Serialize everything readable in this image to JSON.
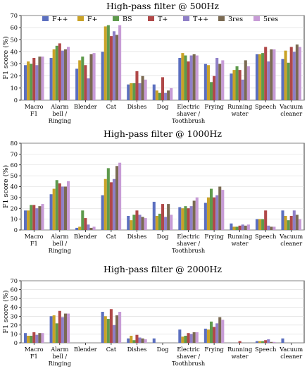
{
  "legend": [
    {
      "name": "F++",
      "color": "#5b6fbf"
    },
    {
      "name": "F+",
      "color": "#c9a227"
    },
    {
      "name": "BS",
      "color": "#5e9a4c"
    },
    {
      "name": "T+",
      "color": "#b04848"
    },
    {
      "name": "T++",
      "color": "#8f7fc7"
    },
    {
      "name": "3res",
      "color": "#7a6a52"
    },
    {
      "name": "5res",
      "color": "#c79bd6"
    }
  ],
  "chart_data": [
    {
      "type": "bar",
      "title": "High-pass filter @ 500Hz",
      "ylabel": "F1 score (%)",
      "ylim": [
        0,
        70
      ],
      "yticks": [
        0,
        10,
        20,
        30,
        40,
        50,
        60,
        70
      ],
      "grid": true,
      "legend_placement": "top",
      "categories": [
        "Macro\nF1",
        "Alarm\nbell /\nRinging",
        "Blender",
        "Cat",
        "Dishes",
        "Dog",
        "Electric\nshaver /\nToothbrush",
        "Frying",
        "Running\nwater",
        "Speech",
        "Vacuum\ncleaner"
      ],
      "series": [
        {
          "name": "F++",
          "values": [
            29,
            35,
            26,
            40,
            13,
            13,
            35,
            30,
            22,
            38,
            34
          ]
        },
        {
          "name": "F+",
          "values": [
            32,
            42,
            33,
            61,
            14,
            8,
            39,
            29,
            25,
            38,
            41
          ]
        },
        {
          "name": "BS",
          "values": [
            30,
            45,
            36,
            62,
            14,
            6,
            37,
            15,
            28,
            39,
            31
          ]
        },
        {
          "name": "T+",
          "values": [
            35,
            47,
            29,
            53,
            24,
            19,
            32,
            20,
            25,
            44,
            44
          ]
        },
        {
          "name": "T++",
          "values": [
            29,
            41,
            18,
            57,
            14,
            6,
            37,
            35,
            17,
            32,
            40
          ]
        },
        {
          "name": "3res",
          "values": [
            36,
            42,
            38,
            54,
            20,
            8,
            38,
            30,
            33,
            42,
            46
          ]
        },
        {
          "name": "5res",
          "values": [
            36,
            44,
            39,
            62,
            17,
            10,
            37,
            33,
            28,
            42,
            44
          ]
        }
      ]
    },
    {
      "type": "bar",
      "title": "High-pass filter @ 1000Hz",
      "ylabel": "F1 score (%)",
      "ylim": [
        0,
        80
      ],
      "yticks": [
        0,
        10,
        20,
        30,
        40,
        50,
        60,
        70,
        80
      ],
      "grid": true,
      "categories": [
        "Macro\nF1",
        "Alarm\nbell /\nRinging",
        "Blender",
        "Cat",
        "Dishes",
        "Dog",
        "Electric\nshaver /\nToothbrush",
        "Frying",
        "Running\nwater",
        "Speech",
        "Vacuum\ncleaner"
      ],
      "series": [
        {
          "name": "F++",
          "values": [
            18,
            33,
            2,
            32,
            13,
            26,
            21,
            25,
            6,
            10,
            18
          ]
        },
        {
          "name": "F+",
          "values": [
            18,
            38,
            3,
            47,
            9,
            13,
            20,
            30,
            3,
            10,
            13
          ]
        },
        {
          "name": "BS",
          "values": [
            23,
            46,
            18,
            57,
            14,
            15,
            22,
            38,
            3,
            10,
            9
          ]
        },
        {
          "name": "T+",
          "values": [
            23,
            43,
            11,
            44,
            18,
            24,
            20,
            30,
            4,
            18,
            13
          ]
        },
        {
          "name": "T++",
          "values": [
            20,
            40,
            5,
            47,
            14,
            12,
            22,
            32,
            5,
            4,
            18
          ]
        },
        {
          "name": "3res",
          "values": [
            22,
            40,
            2,
            59,
            12,
            24,
            27,
            40,
            4,
            3,
            14
          ]
        },
        {
          "name": "5res",
          "values": [
            24,
            45,
            3,
            62,
            11,
            14,
            30,
            37,
            5,
            3,
            10
          ]
        }
      ]
    },
    {
      "type": "bar",
      "title": "High-pass filter @ 2000Hz",
      "ylabel": "F1 score (%)",
      "ylim": [
        0,
        70
      ],
      "yticks": [
        0,
        10,
        20,
        30,
        40,
        50,
        60,
        70
      ],
      "grid": true,
      "categories": [
        "Macro\nF1",
        "Alarm\nbell /\nRinging",
        "Blender",
        "Cat",
        "Dishes",
        "Dog",
        "Electric\nshaver /\nToothbrush",
        "Frying",
        "Running\nwater",
        "Speech",
        "Vacuum\ncleaner"
      ],
      "series": [
        {
          "name": "F++",
          "values": [
            11,
            30,
            0,
            35,
            5,
            5,
            15,
            16,
            0,
            2,
            5
          ]
        },
        {
          "name": "F+",
          "values": [
            8,
            31,
            0,
            30,
            8,
            0,
            7,
            15,
            0,
            2,
            0
          ]
        },
        {
          "name": "BS",
          "values": [
            8,
            22,
            0,
            27,
            3,
            0,
            8,
            24,
            0,
            2,
            0
          ]
        },
        {
          "name": "T+",
          "values": [
            12,
            36,
            0,
            38,
            9,
            0,
            11,
            18,
            2,
            3,
            0
          ]
        },
        {
          "name": "T++",
          "values": [
            9,
            29,
            0,
            20,
            6,
            0,
            10,
            22,
            0,
            4,
            0
          ]
        },
        {
          "name": "3res",
          "values": [
            11,
            33,
            0,
            31,
            5,
            0,
            12,
            29,
            0,
            1,
            0
          ]
        },
        {
          "name": "5res",
          "values": [
            11,
            33,
            0,
            35,
            4,
            0,
            12,
            26,
            0,
            1,
            0
          ]
        }
      ]
    }
  ]
}
